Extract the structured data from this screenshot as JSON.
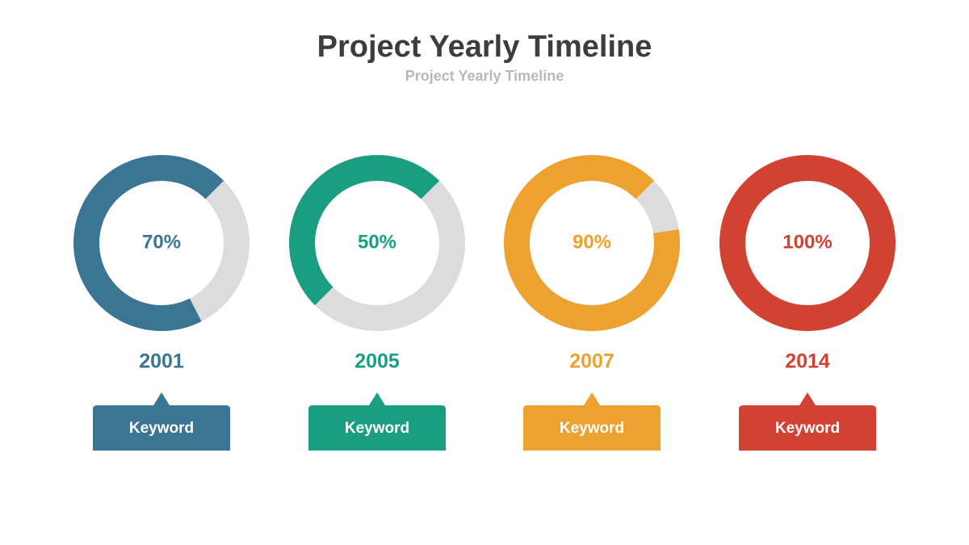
{
  "title": "Project Yearly Timeline",
  "subtitle": "Project Yearly Timeline",
  "chart_data": [
    {
      "type": "donut",
      "values": [
        70
      ],
      "value_labels": [
        "70%"
      ],
      "ylim": [
        0,
        100
      ],
      "color": "#3a7593",
      "track_color": "#dcdcdc",
      "year": "2001",
      "caption": "Keyword"
    },
    {
      "type": "donut",
      "values": [
        50
      ],
      "value_labels": [
        "50%"
      ],
      "ylim": [
        0,
        100
      ],
      "color": "#1a9e82",
      "track_color": "#dcdcdc",
      "year": "2005",
      "caption": "Keyword"
    },
    {
      "type": "donut",
      "values": [
        90
      ],
      "value_labels": [
        "90%"
      ],
      "ylim": [
        0,
        100
      ],
      "color": "#eda12e",
      "track_color": "#dcdcdc",
      "year": "2007",
      "caption": "Keyword"
    },
    {
      "type": "donut",
      "values": [
        100
      ],
      "value_labels": [
        "100%"
      ],
      "ylim": [
        0,
        100
      ],
      "color": "#d24233",
      "track_color": "#dcdcdc",
      "year": "2014",
      "caption": "Keyword"
    }
  ]
}
